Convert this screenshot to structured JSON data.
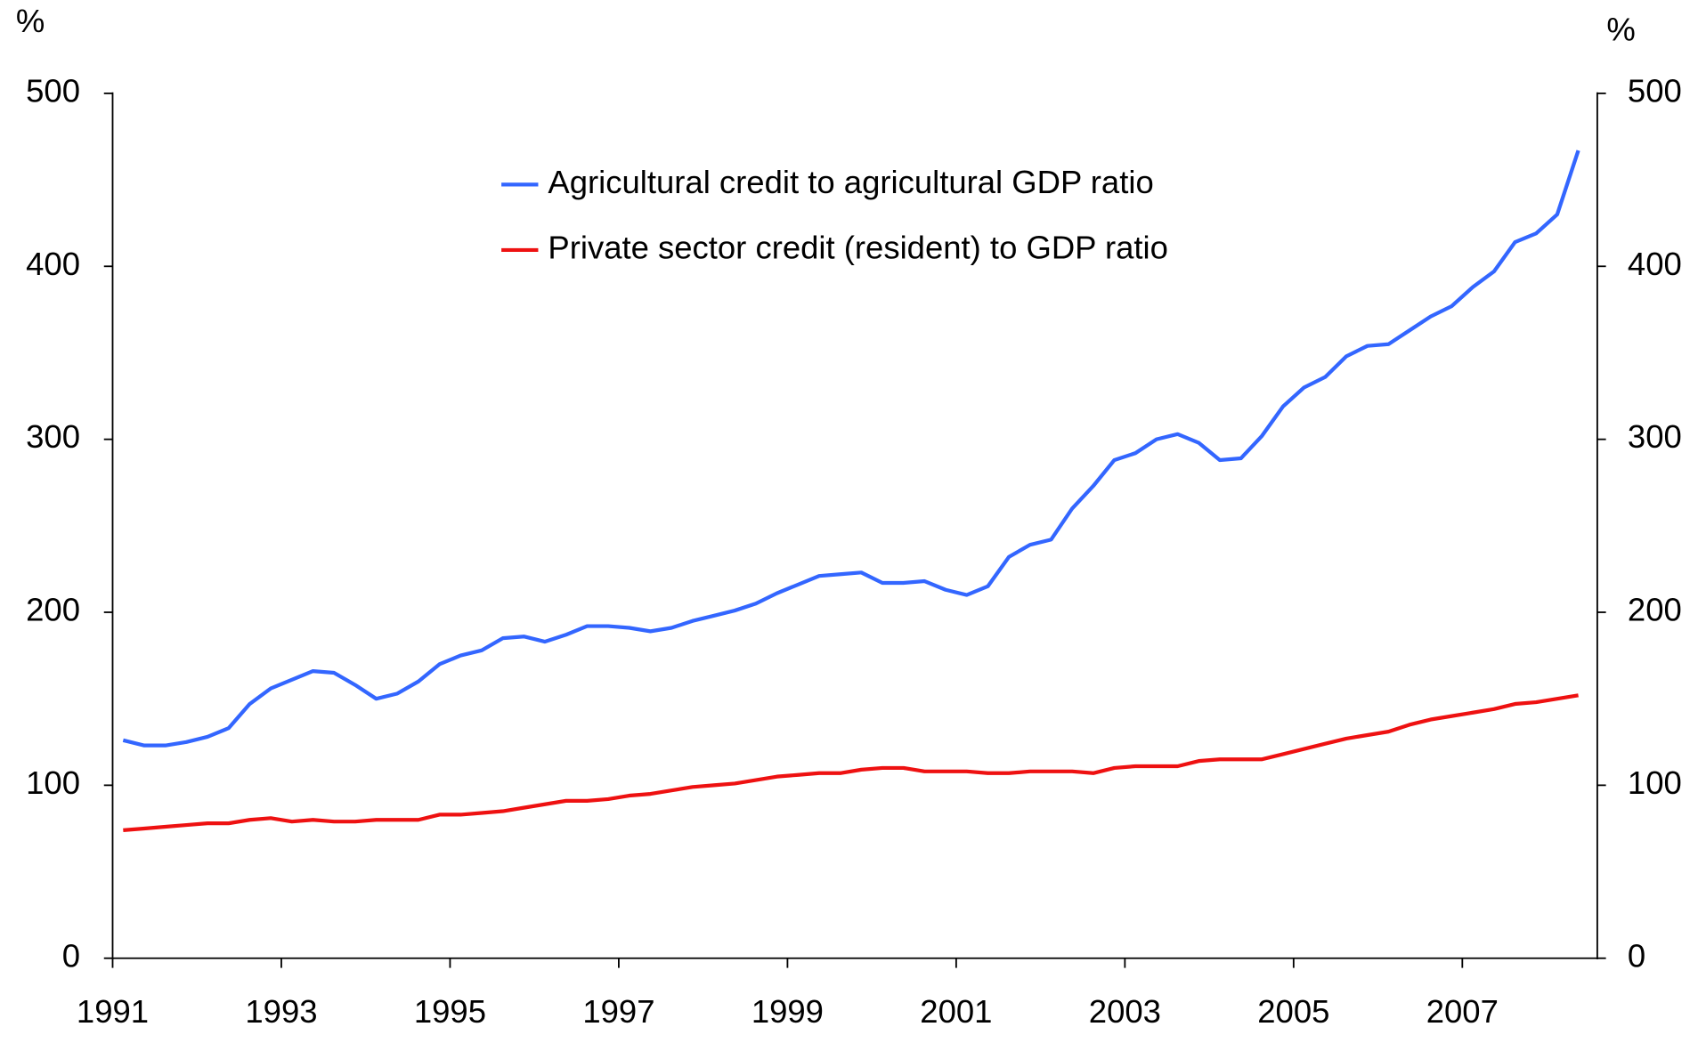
{
  "chart_data": {
    "type": "line",
    "y_label": "%",
    "y2_label": "%",
    "x": [
      1991.125,
      1991.375,
      1991.625,
      1991.875,
      1992.125,
      1992.375,
      1992.625,
      1992.875,
      1993.125,
      1993.375,
      1993.625,
      1993.875,
      1994.125,
      1994.375,
      1994.625,
      1994.875,
      1995.125,
      1995.375,
      1995.625,
      1995.875,
      1996.125,
      1996.375,
      1996.625,
      1996.875,
      1997.125,
      1997.375,
      1997.625,
      1997.875,
      1998.125,
      1998.375,
      1998.625,
      1998.875,
      1999.125,
      1999.375,
      1999.625,
      1999.875,
      2000.125,
      2000.375,
      2000.625,
      2000.875,
      2001.125,
      2001.375,
      2001.625,
      2001.875,
      2002.125,
      2002.375,
      2002.625,
      2002.875,
      2003.125,
      2003.375,
      2003.625,
      2003.875,
      2004.125,
      2004.375,
      2004.625,
      2004.875,
      2005.125,
      2005.375,
      2005.625,
      2005.875,
      2006.125,
      2006.375,
      2006.625,
      2006.875,
      2007.125,
      2007.375,
      2007.625,
      2007.875,
      2008.125,
      2008.375
    ],
    "series": [
      {
        "name": "Agricultural credit to agricultural GDP ratio",
        "color": "#3366ff",
        "values": [
          126,
          123,
          123,
          125,
          128,
          133,
          147,
          156,
          161,
          166,
          165,
          158,
          150,
          153,
          160,
          170,
          175,
          178,
          185,
          186,
          183,
          187,
          192,
          192,
          191,
          189,
          191,
          195,
          198,
          201,
          205,
          211,
          216,
          221,
          222,
          223,
          217,
          217,
          218,
          213,
          210,
          215,
          232,
          239,
          242,
          260,
          273,
          288,
          292,
          300,
          303,
          298,
          288,
          289,
          302,
          319,
          330,
          336,
          348,
          354,
          355,
          363,
          371,
          377,
          388,
          397,
          414,
          419,
          430,
          467
        ]
      },
      {
        "name": "Private sector credit (resident) to GDP ratio",
        "color": "#ee1111",
        "values": [
          74,
          75,
          76,
          77,
          78,
          78,
          80,
          81,
          79,
          80,
          79,
          79,
          80,
          80,
          80,
          83,
          83,
          84,
          85,
          87,
          89,
          91,
          91,
          92,
          94,
          95,
          97,
          99,
          100,
          101,
          103,
          105,
          106,
          107,
          107,
          109,
          110,
          110,
          108,
          108,
          108,
          107,
          107,
          108,
          108,
          108,
          107,
          110,
          111,
          111,
          111,
          114,
          115,
          115,
          115,
          118,
          121,
          124,
          127,
          129,
          131,
          135,
          138,
          140,
          142,
          144,
          147,
          148,
          150,
          152
        ]
      }
    ],
    "xlim": [
      1991,
      2008.6
    ],
    "xticks": [
      1991,
      1993,
      1995,
      1997,
      1999,
      2001,
      2003,
      2005,
      2007
    ],
    "ylim": [
      0,
      500
    ],
    "yticks": [
      0,
      100,
      200,
      300,
      400,
      500
    ],
    "y2lim": [
      0,
      500
    ],
    "y2ticks": [
      0,
      100,
      200,
      300,
      400,
      500
    ],
    "grid": false
  }
}
